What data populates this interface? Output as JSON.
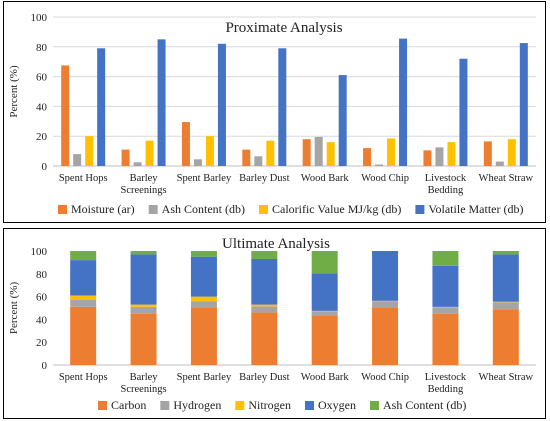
{
  "chart_data": [
    {
      "type": "bar",
      "title": "Proximate Analysis",
      "xlabel": "",
      "ylabel": "Percent (%)",
      "ylim": [
        0,
        100
      ],
      "yticks": [
        "0",
        "20",
        "40",
        "60",
        "80",
        "100"
      ],
      "grid": true,
      "legend_position": "bottom",
      "categories": [
        "Spent Hops",
        "Barley\nScreenings",
        "Spent Barley",
        "Barley Dust",
        "Wood Bark",
        "Wood Chip",
        "Livestock\nBedding",
        "Wheat Straw"
      ],
      "series": [
        {
          "name": "Moisture (ar)",
          "color": "#ed7d31",
          "values": [
            67.5,
            11,
            29.5,
            11,
            18,
            12,
            10.5,
            16.5
          ]
        },
        {
          "name": "Ash Content (db)",
          "color": "#a5a5a5",
          "values": [
            8,
            2.5,
            4.5,
            6.5,
            19.5,
            1,
            12.5,
            3
          ]
        },
        {
          "name": "Calorific Value MJ/kg  (db)",
          "color": "#ffc000",
          "values": [
            20,
            17,
            20,
            17,
            16,
            18.5,
            16,
            18
          ]
        },
        {
          "name": "Volatile Matter (db)",
          "color": "#4472c4",
          "values": [
            79,
            85,
            82,
            79,
            61,
            85.5,
            72,
            82.5
          ]
        }
      ]
    },
    {
      "type": "bar",
      "stacked": true,
      "title": "Ultimate Analysis",
      "xlabel": "",
      "ylabel": "Percent (%)",
      "ylim": [
        0,
        100
      ],
      "yticks": [
        "0",
        "20",
        "40",
        "60",
        "80",
        "100"
      ],
      "grid": false,
      "legend_position": "bottom",
      "categories": [
        "Spent Hops",
        "Barley\nScreenings",
        "Spent Barley",
        "Barley Dust",
        "Wood Bark",
        "Wood Chip",
        "Livestock\nBedding",
        "Wheat Straw"
      ],
      "series": [
        {
          "name": "Carbon",
          "color": "#ed7d31",
          "values": [
            51,
            45,
            50,
            46,
            43,
            50,
            45,
            49
          ]
        },
        {
          "name": "Hydrogen",
          "color": "#a5a5a5",
          "values": [
            6,
            6,
            6,
            5.5,
            4,
            6,
            5.5,
            6
          ]
        },
        {
          "name": "Nitrogen",
          "color": "#ffc000",
          "values": [
            4,
            2,
            4,
            1.5,
            0.5,
            0.3,
            0.5,
            0.5
          ]
        },
        {
          "name": "Oxygen",
          "color": "#4472c4",
          "values": [
            31,
            44,
            35,
            40,
            33,
            43.7,
            36,
            41.5
          ]
        },
        {
          "name": "Ash Content (db)",
          "color": "#70ad47",
          "values": [
            8,
            3,
            5,
            7,
            19.5,
            0,
            13,
            3
          ]
        }
      ]
    }
  ]
}
